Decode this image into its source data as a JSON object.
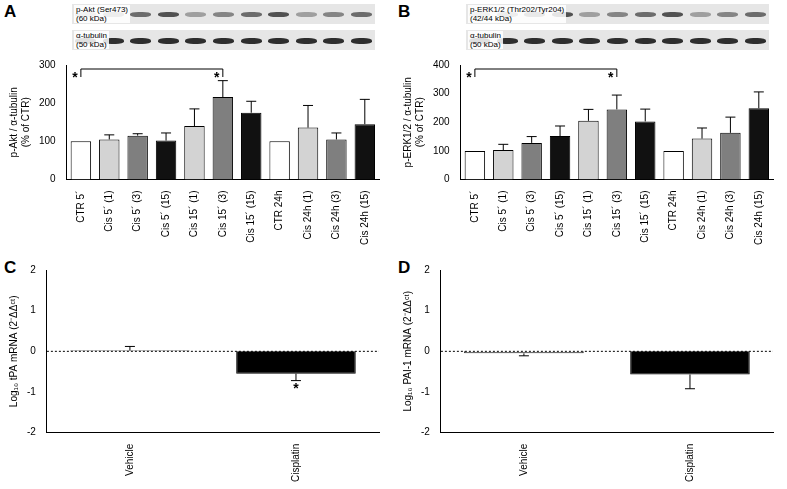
{
  "chart_data": [
    {
      "panel": "A",
      "type": "bar",
      "blot_labels": [
        [
          "p-Akt (Ser473)",
          "(60 kDa)"
        ],
        [
          "α-tubulin",
          "(50 kDa)"
        ]
      ],
      "y_label": [
        "p-Akt / α-tubulin",
        "(% of CTR)"
      ],
      "categories": [
        "CTR 5´",
        "Cis 5´ (1)",
        "Cis 5´ (3)",
        "Cis 5´ (15)",
        "Cis 15´ (1)",
        "Cis 15´ (3)",
        "Cis 15´ (15)",
        "CTR 24h",
        "Cis 24h (1)",
        "Cis 24h (3)",
        "Cis 24h (15)"
      ],
      "values": [
        100,
        105,
        115,
        102,
        140,
        216,
        175,
        100,
        136,
        105,
        145
      ],
      "errors": [
        0,
        12,
        5,
        20,
        45,
        43,
        30,
        0,
        58,
        17,
        65
      ],
      "colors": [
        "#ffffff",
        "#d3d3d3",
        "#7f7f7f",
        "#111111",
        "#d3d3d3",
        "#7f7f7f",
        "#111111",
        "#ffffff",
        "#d3d3d3",
        "#7f7f7f",
        "#111111"
      ],
      "ylim": [
        0,
        300
      ],
      "yticks": [
        0,
        100,
        200,
        300
      ],
      "grid": false,
      "significance": {
        "from": "CTR 5´",
        "to": "Cis 15´ (3)",
        "text": "*"
      }
    },
    {
      "panel": "B",
      "type": "bar",
      "blot_labels": [
        [
          "p-ERK1/2 (Thr202/Tyr204)",
          "(42/44 kDa)"
        ],
        [
          "α-tubulin",
          "(50 kDa)"
        ]
      ],
      "y_label": [
        "p-ERK1/2 / α-tubulin",
        "(% of CTR)"
      ],
      "categories": [
        "CTR 5´",
        "Cis 5´ (1)",
        "Cis 5´ (3)",
        "Cis 5´ (15)",
        "Cis 15´ (1)",
        "Cis 15´ (3)",
        "Cis 15´ (15)",
        "CTR 24h",
        "Cis 24h (1)",
        "Cis 24h (3)",
        "Cis 24h (15)"
      ],
      "values": [
        100,
        103,
        128,
        152,
        205,
        245,
        203,
        100,
        143,
        163,
        249
      ],
      "errors": [
        0,
        20,
        22,
        35,
        40,
        50,
        43,
        0,
        37,
        55,
        57
      ],
      "colors": [
        "#ffffff",
        "#d3d3d3",
        "#7f7f7f",
        "#111111",
        "#d3d3d3",
        "#7f7f7f",
        "#111111",
        "#ffffff",
        "#d3d3d3",
        "#7f7f7f",
        "#111111"
      ],
      "ylim": [
        0,
        400
      ],
      "yticks": [
        0,
        100,
        200,
        300,
        400
      ],
      "grid": false,
      "significance": {
        "from": "CTR 5´",
        "to": "Cis 15´ (3)",
        "text": "*"
      }
    },
    {
      "panel": "C",
      "type": "bar",
      "y_label": [
        "Log₁₀ tPA mRNA (2⁻ΔΔᶜᵗ)"
      ],
      "categories": [
        "Vehicle",
        "Cisplatin"
      ],
      "values": [
        0.02,
        -0.55
      ],
      "errors": [
        0.1,
        0.17
      ],
      "colors": [
        "#ffffff",
        "#000000"
      ],
      "ylim": [
        -2,
        2
      ],
      "yticks": [
        -2,
        -1,
        0,
        1,
        2
      ],
      "grid": false,
      "annotations": [
        {
          "category": "Cisplatin",
          "text": "*"
        }
      ]
    },
    {
      "panel": "D",
      "type": "bar",
      "y_label": [
        "Log₁₀ PAI-1 mRNA (2⁻ΔΔᶜᵗ)"
      ],
      "categories": [
        "Vehicle",
        "Cisplatin"
      ],
      "values": [
        -0.05,
        -0.57
      ],
      "errors": [
        0.06,
        0.35
      ],
      "colors": [
        "#ffffff",
        "#000000"
      ],
      "ylim": [
        -2,
        2
      ],
      "yticks": [
        -2,
        -1,
        0,
        1,
        2
      ],
      "grid": false
    }
  ]
}
